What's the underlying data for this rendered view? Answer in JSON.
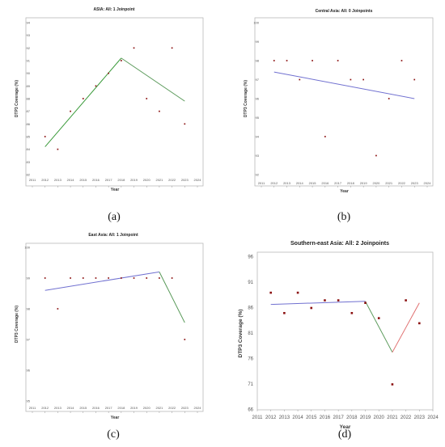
{
  "chart_data": [
    {
      "type": "scatter",
      "panel_label": "(a)",
      "title": "ASIA: All: 1 Joinpoint",
      "xlabel": "Year",
      "ylabel": "DTP3 Coverage (%)",
      "x_ticks": [
        "2011",
        "2012",
        "2013",
        "2014",
        "2015",
        "2016",
        "2017",
        "2018",
        "2019",
        "2020",
        "2021",
        "2022",
        "2023",
        "2024"
      ],
      "y_ticks": [
        "82",
        "83",
        "84",
        "85",
        "86",
        "87",
        "88",
        "89",
        "90",
        "91",
        "92",
        "93",
        "94"
      ],
      "xlim": [
        2011,
        2024
      ],
      "ylim": [
        82,
        94
      ],
      "points": {
        "x": [
          2012,
          2013,
          2014,
          2015,
          2016,
          2017,
          2018,
          2019,
          2020,
          2021,
          2022,
          2023
        ],
        "y": [
          85,
          84,
          87,
          88,
          89,
          90,
          91,
          92,
          88,
          87,
          92,
          86
        ]
      },
      "segments": [
        {
          "x": [
            2012,
            2018
          ],
          "y": [
            84.2,
            91.2
          ],
          "color": "#3a9a3a"
        },
        {
          "x": [
            2018,
            2023
          ],
          "y": [
            91.2,
            87.8
          ],
          "color": "#5a9a5a"
        }
      ],
      "grid": false
    },
    {
      "type": "scatter",
      "panel_label": "(b)",
      "title": "Central Asia: All: 0 Joinpoints",
      "xlabel": "Year",
      "ylabel": "DTP3 Coverage (%)",
      "x_ticks": [
        "2011",
        "2012",
        "2013",
        "2014",
        "2015",
        "2016",
        "2017",
        "2018",
        "2019",
        "2020",
        "2021",
        "2022",
        "2023",
        "2024"
      ],
      "y_ticks": [
        "92",
        "93",
        "94",
        "95",
        "96",
        "97",
        "98",
        "99",
        "100"
      ],
      "xlim": [
        2011,
        2024
      ],
      "ylim": [
        92,
        100
      ],
      "points": {
        "x": [
          2012,
          2013,
          2014,
          2015,
          2016,
          2017,
          2018,
          2019,
          2020,
          2021,
          2022,
          2023
        ],
        "y": [
          98,
          98,
          97,
          98,
          94,
          98,
          97,
          97,
          93,
          96,
          98,
          97
        ]
      },
      "segments": [
        {
          "x": [
            2012,
            2023
          ],
          "y": [
            97.4,
            96.0
          ],
          "color": "#7070d0"
        }
      ],
      "grid": false
    },
    {
      "type": "scatter",
      "panel_label": "(c)",
      "title": "East Asia: All: 1 Joinpoint",
      "xlabel": "Year",
      "ylabel": "DTP3 Coverage (%)",
      "x_ticks": [
        "2011",
        "2012",
        "2013",
        "2014",
        "2015",
        "2016",
        "2017",
        "2018",
        "2019",
        "2020",
        "2021",
        "2022",
        "2023",
        "2024"
      ],
      "y_ticks": [
        "95",
        "96",
        "97",
        "98",
        "99",
        "100"
      ],
      "xlim": [
        2011,
        2024
      ],
      "ylim": [
        95,
        100
      ],
      "points": {
        "x": [
          2012,
          2013,
          2014,
          2015,
          2016,
          2017,
          2018,
          2019,
          2020,
          2021,
          2022,
          2023
        ],
        "y": [
          99,
          98,
          99,
          99,
          99,
          99,
          99,
          99,
          99,
          99,
          99,
          97
        ]
      },
      "segments": [
        {
          "x": [
            2012,
            2021
          ],
          "y": [
            98.6,
            99.2
          ],
          "color": "#7070d0"
        },
        {
          "x": [
            2021,
            2023
          ],
          "y": [
            99.2,
            97.55
          ],
          "color": "#5a9a5a"
        }
      ],
      "grid": false
    },
    {
      "type": "scatter",
      "panel_label": "(d)",
      "title": "Southern-east  Asia: All: 2 Joinpoints",
      "xlabel": "Year",
      "ylabel": "DTP3 Coverage (%)",
      "x_ticks": [
        "2011",
        "2012",
        "2013",
        "2014",
        "2015",
        "2016",
        "2017",
        "2018",
        "2019",
        "2020",
        "2021",
        "2022",
        "2023",
        "2024"
      ],
      "y_ticks": [
        "66",
        "71",
        "76",
        "81",
        "86",
        "91",
        "96"
      ],
      "xlim": [
        2011,
        2024
      ],
      "ylim": [
        66,
        96
      ],
      "points": {
        "x": [
          2012,
          2013,
          2014,
          2015,
          2016,
          2017,
          2018,
          2019,
          2020,
          2021,
          2022,
          2023
        ],
        "y": [
          89,
          85,
          89,
          86,
          87.5,
          87.5,
          85,
          87,
          84,
          71,
          87.5,
          83
        ]
      },
      "segments": [
        {
          "x": [
            2012,
            2019
          ],
          "y": [
            86.7,
            87.3
          ],
          "color": "#7070d0"
        },
        {
          "x": [
            2019,
            2021
          ],
          "y": [
            87.3,
            77.3
          ],
          "color": "#5a9a5a"
        },
        {
          "x": [
            2021,
            2023
          ],
          "y": [
            77.3,
            87.0
          ],
          "color": "#e07070"
        }
      ],
      "grid": false
    }
  ]
}
